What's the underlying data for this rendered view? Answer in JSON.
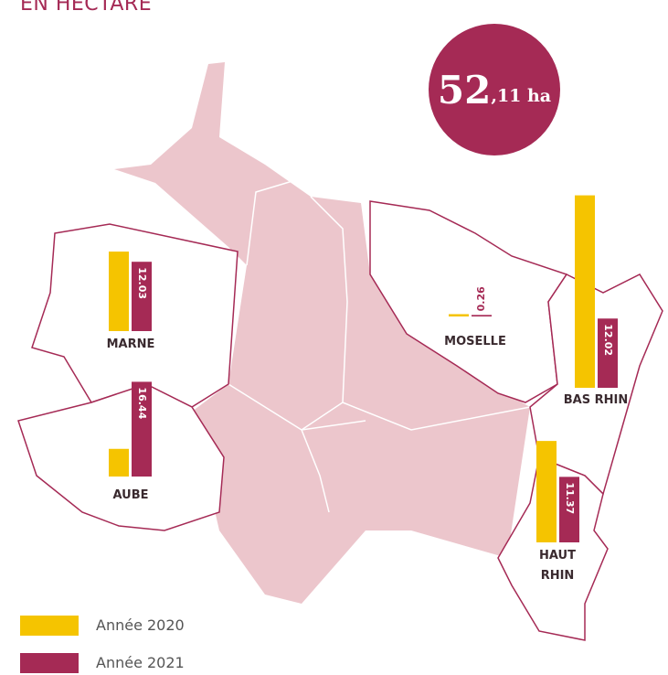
{
  "title": "EN HECTARE",
  "total_main": "52",
  "total_rest": ",11 ha",
  "chart_data": {
    "type": "bar",
    "categories": [
      "MARNE",
      "AUBE",
      "MOSELLE",
      "BAS RHIN",
      "HAUT RHIN"
    ],
    "series": [
      {
        "name": "Année 2020",
        "color": "#f5c400",
        "values": [
          13.8,
          4.8,
          0.4,
          33.4,
          17.6
        ]
      },
      {
        "name": "Année 2021",
        "color": "#a52a55",
        "values": [
          12.03,
          16.44,
          0.26,
          12.02,
          11.37
        ]
      }
    ]
  }
}
